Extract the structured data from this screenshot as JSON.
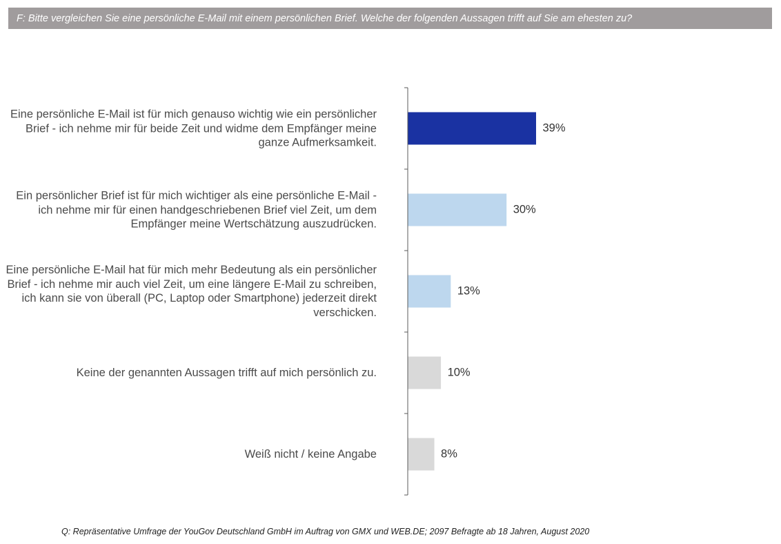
{
  "question": "F: Bitte vergleichen Sie eine persönliche E-Mail mit einem persönlichen Brief. Welche der folgenden Aussagen trifft auf Sie am ehesten zu?",
  "source": "Q: Repräsentative Umfrage der YouGov Deutschland GmbH im Auftrag von GMX und WEB.DE; 2097 Befragte ab 18 Jahren, August 2020",
  "colors": {
    "dark_blue": "#1a32a2",
    "light_blue": "#bdd7ee",
    "gray": "#d9d9d9",
    "axis": "#595959",
    "header_bg": "#a09c9d"
  },
  "chart_data": {
    "type": "bar",
    "orientation": "horizontal",
    "categories": [
      "Eine persönliche E-Mail ist für mich genauso wichtig wie ein persönlicher Brief - ich nehme mir für beide Zeit und widme dem Empfänger meine ganze Aufmerksamkeit.",
      "Ein persönlicher Brief ist für mich wichtiger als eine persönliche E-Mail - ich nehme mir für einen handgeschriebenen Brief viel Zeit, um dem Empfänger meine Wertschätzung auszudrücken.",
      "Eine persönliche E-Mail hat für mich mehr Bedeutung als ein persönlicher Brief - ich nehme mir auch viel Zeit, um eine längere E-Mail zu schreiben, ich kann sie von überall (PC, Laptop oder Smartphone) jederzeit direkt verschicken.",
      "Keine der genannten Aussagen trifft auf mich persönlich zu.",
      "Weiß nicht / keine Angabe"
    ],
    "values": [
      39,
      30,
      13,
      10,
      8
    ],
    "value_labels": [
      "39%",
      "30%",
      "13%",
      "10%",
      "8%"
    ],
    "bar_colors": [
      "#1a32a2",
      "#bdd7ee",
      "#bdd7ee",
      "#d9d9d9",
      "#d9d9d9"
    ],
    "unit": "%",
    "xlim": [
      0,
      100
    ],
    "grid": false,
    "legend": "none"
  }
}
